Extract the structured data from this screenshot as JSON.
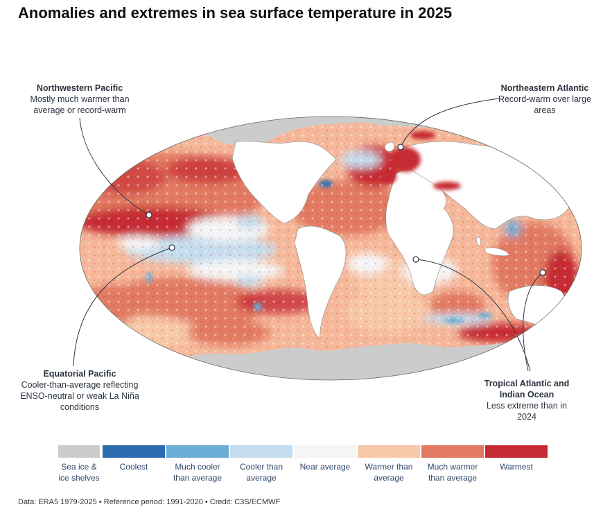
{
  "title": "Anomalies and extremes in sea surface temperature in 2025",
  "colors": {
    "sea_ice": "#cccccc",
    "coolest": "#2b6cb0",
    "much_cooler": "#6aaed6",
    "cooler": "#c4ddee",
    "near": "#f5f5f5",
    "warmer": "#f8c8a8",
    "much_warmer": "#e27a62",
    "warmest": "#c62a32",
    "land": "#ffffff",
    "outline": "#555555",
    "leader": "#2b3440"
  },
  "callouts": {
    "northwestern_pacific": {
      "title": "Northwestern Pacific",
      "text": "Mostly much warmer than average or record-warm"
    },
    "northeastern_atlantic": {
      "title": "Northeastern Atlantic",
      "text": "Record-warm over large areas"
    },
    "equatorial_pacific": {
      "title": "Equatorial Pacific",
      "text": "Cooler-than-average reflecting ENSO-neutral or weak La Niña conditions"
    },
    "tropical_atlantic_indian": {
      "title": "Tropical Atlantic and Indian Ocean",
      "text": "Less extreme than in 2024"
    }
  },
  "legend": [
    {
      "label": "Sea ice & ice shelves",
      "color": "#cccccc"
    },
    {
      "label": "Coolest",
      "color": "#2b6cb0"
    },
    {
      "label": "Much cooler than average",
      "color": "#6aaed6"
    },
    {
      "label": "Cooler than average",
      "color": "#c4ddee"
    },
    {
      "label": "Near average",
      "color": "#f5f5f5"
    },
    {
      "label": "Warmer than average",
      "color": "#f8c8a8"
    },
    {
      "label": "Much warmer than average",
      "color": "#e27a62"
    },
    {
      "label": "Warmest",
      "color": "#c62a32"
    }
  ],
  "source": "Data: ERA5 1979-2025 • Reference period: 1991-2020 • Credit: C3S/ECMWF"
}
